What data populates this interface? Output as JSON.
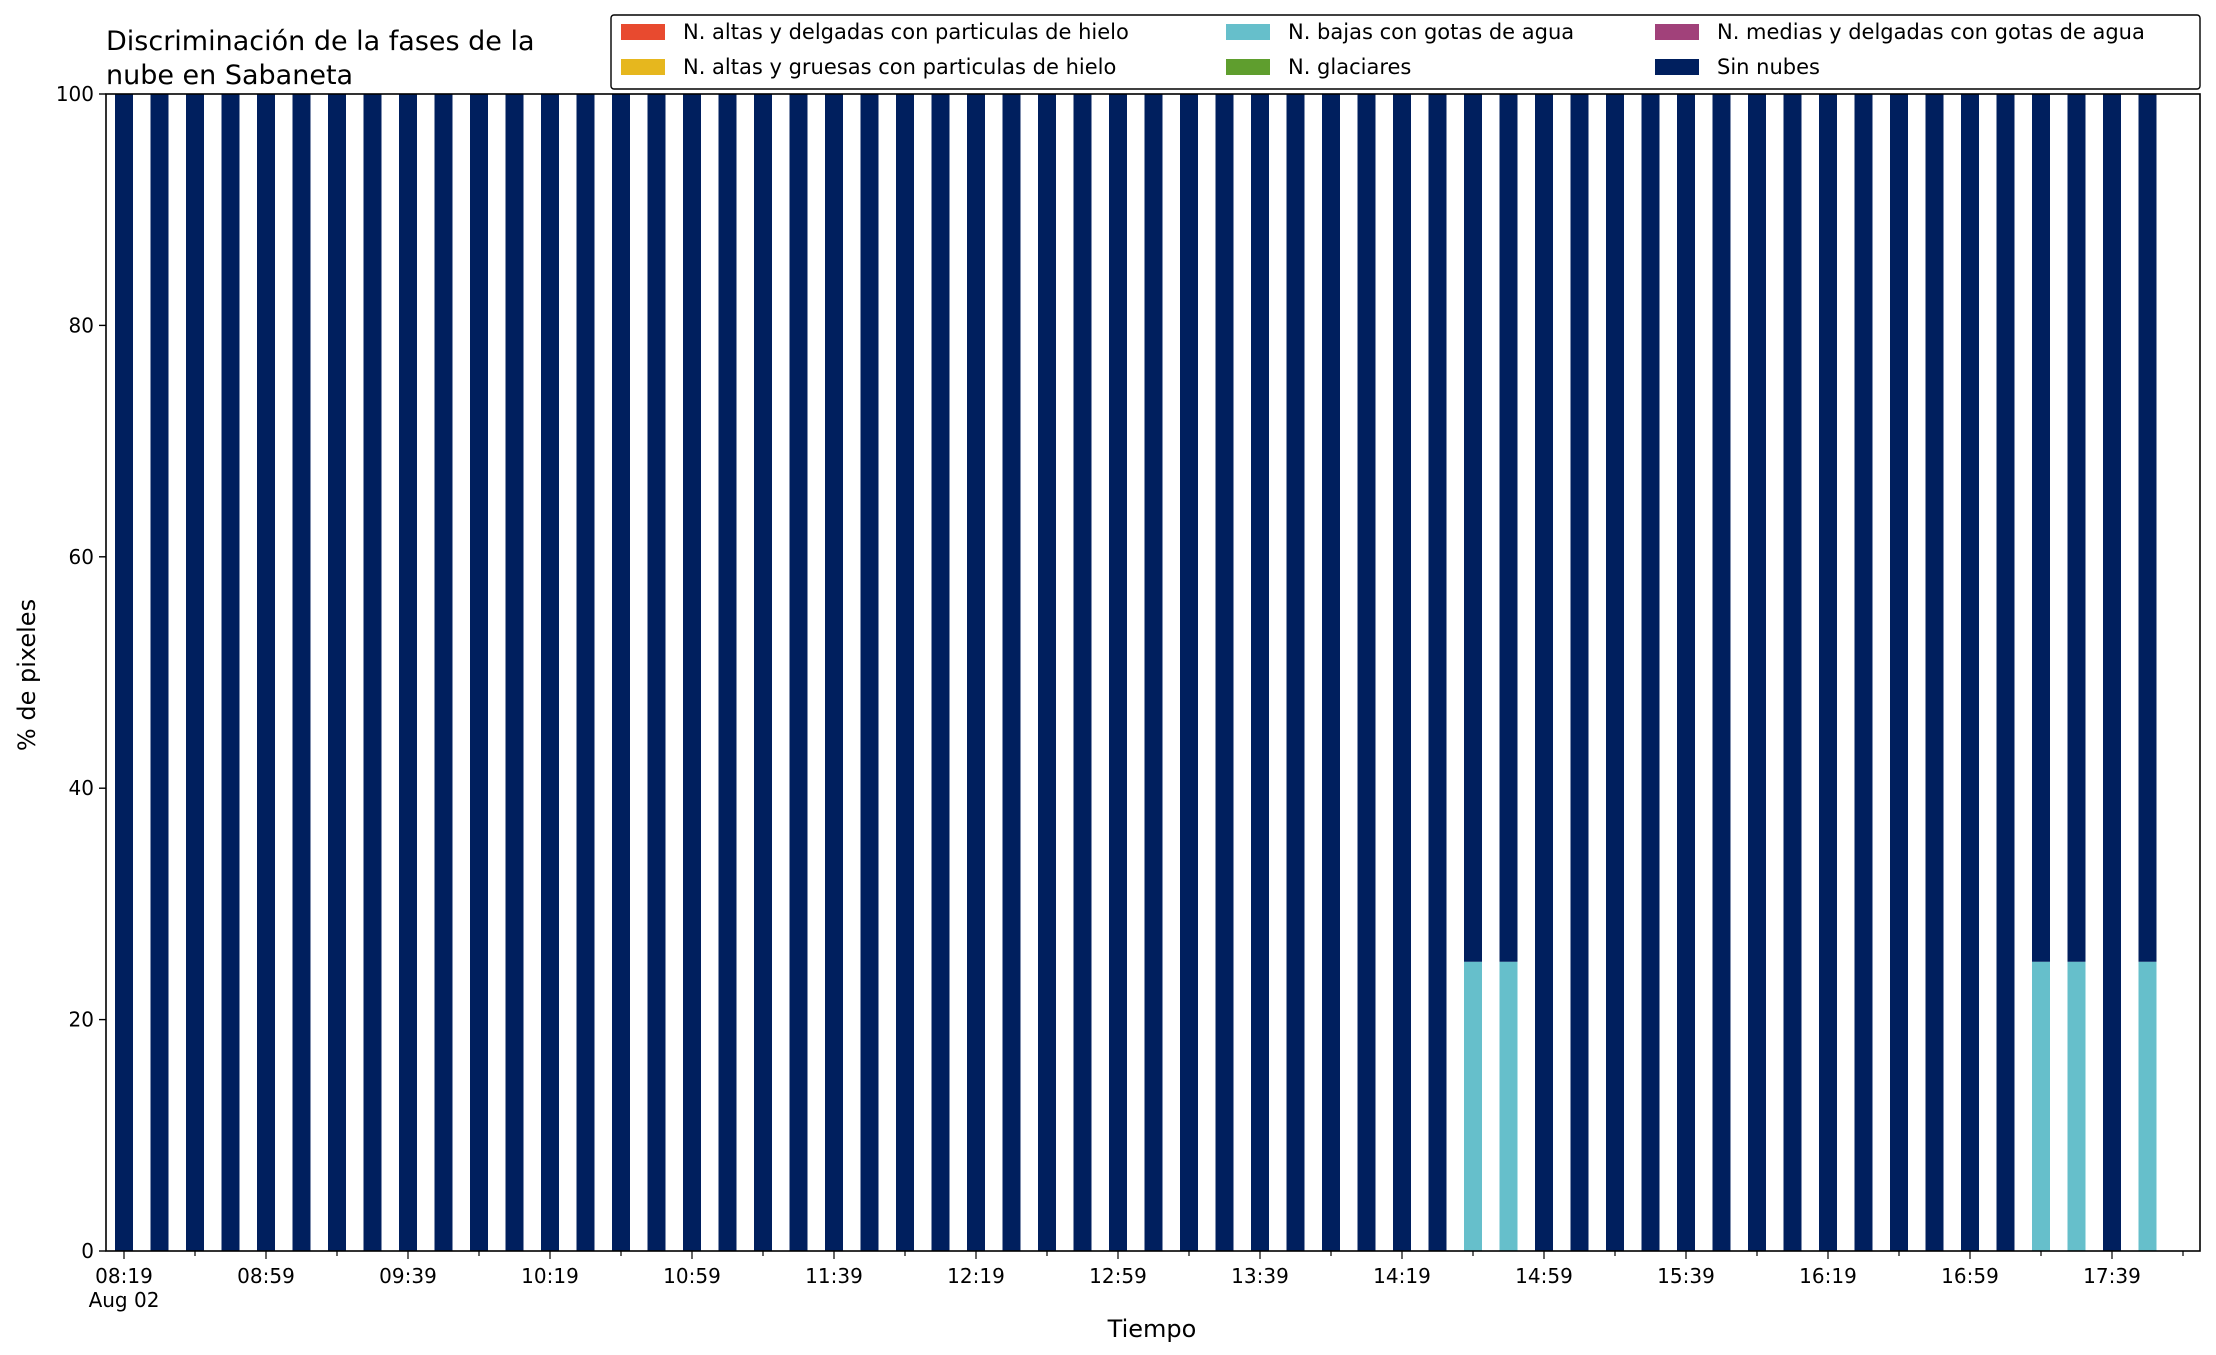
{
  "chart_data": {
    "type": "bar",
    "stacked": true,
    "title": [
      "Discriminación de la fases de la",
      "nube en Sabaneta"
    ],
    "xlabel": "Tiempo",
    "ylabel": "% de pixeles",
    "ylim": [
      0,
      100
    ],
    "yticks": [
      0,
      20,
      40,
      60,
      80,
      100
    ],
    "grid": false,
    "legend_position": "top-right",
    "legend_columns": 3,
    "x_start": "2024-08-02 08:19",
    "x_tick_labels": [
      "08:19",
      "08:59",
      "09:39",
      "10:19",
      "10:59",
      "11:39",
      "12:19",
      "12:59",
      "13:39",
      "14:19",
      "14:59",
      "15:39",
      "16:19",
      "16:59",
      "17:39"
    ],
    "x_tick_sublabel": "Aug 02",
    "categories": [
      "08:19",
      "08:29",
      "08:39",
      "08:49",
      "08:59",
      "09:09",
      "09:19",
      "09:29",
      "09:39",
      "09:49",
      "09:59",
      "10:09",
      "10:19",
      "10:29",
      "10:39",
      "10:49",
      "10:59",
      "11:09",
      "11:19",
      "11:29",
      "11:39",
      "11:49",
      "11:59",
      "12:09",
      "12:19",
      "12:29",
      "12:39",
      "12:49",
      "12:59",
      "13:09",
      "13:19",
      "13:29",
      "13:39",
      "13:49",
      "13:59",
      "14:09",
      "14:19",
      "14:29",
      "14:39",
      "14:49",
      "14:59",
      "15:09",
      "15:19",
      "15:29",
      "15:39",
      "15:49",
      "15:59",
      "16:09",
      "16:19",
      "16:29",
      "16:39",
      "16:49",
      "16:59",
      "17:09",
      "17:19",
      "17:29",
      "17:39",
      "17:49"
    ],
    "series": [
      {
        "name": "N. altas y delgadas con particulas de hielo",
        "color": "#e84a2f",
        "values": [
          0,
          0,
          0,
          0,
          0,
          0,
          0,
          0,
          0,
          0,
          0,
          0,
          0,
          0,
          0,
          0,
          0,
          0,
          0,
          0,
          0,
          0,
          0,
          0,
          0,
          0,
          0,
          0,
          0,
          0,
          0,
          0,
          0,
          0,
          0,
          0,
          0,
          0,
          0,
          0,
          0,
          0,
          0,
          0,
          0,
          0,
          0,
          0,
          0,
          0,
          0,
          0,
          0,
          0,
          0,
          0,
          0,
          0
        ]
      },
      {
        "name": "N. altas y gruesas con particulas de hielo",
        "color": "#e6b71e",
        "values": [
          0,
          0,
          0,
          0,
          0,
          0,
          0,
          0,
          0,
          0,
          0,
          0,
          0,
          0,
          0,
          0,
          0,
          0,
          0,
          0,
          0,
          0,
          0,
          0,
          0,
          0,
          0,
          0,
          0,
          0,
          0,
          0,
          0,
          0,
          0,
          0,
          0,
          0,
          0,
          0,
          0,
          0,
          0,
          0,
          0,
          0,
          0,
          0,
          0,
          0,
          0,
          0,
          0,
          0,
          0,
          0,
          0,
          0
        ]
      },
      {
        "name": "N. bajas con gotas de agua",
        "color": "#66bfcb",
        "values": [
          0,
          0,
          0,
          0,
          0,
          0,
          0,
          0,
          0,
          0,
          0,
          0,
          0,
          0,
          0,
          0,
          0,
          0,
          0,
          0,
          0,
          0,
          0,
          0,
          0,
          0,
          0,
          0,
          0,
          0,
          0,
          0,
          0,
          0,
          0,
          0,
          0,
          0,
          25,
          25,
          0,
          0,
          0,
          0,
          0,
          0,
          0,
          0,
          0,
          0,
          0,
          0,
          0,
          0,
          25,
          25,
          0,
          25
        ]
      },
      {
        "name": "N. glaciares",
        "color": "#5f9e2e",
        "values": [
          0,
          0,
          0,
          0,
          0,
          0,
          0,
          0,
          0,
          0,
          0,
          0,
          0,
          0,
          0,
          0,
          0,
          0,
          0,
          0,
          0,
          0,
          0,
          0,
          0,
          0,
          0,
          0,
          0,
          0,
          0,
          0,
          0,
          0,
          0,
          0,
          0,
          0,
          0,
          0,
          0,
          0,
          0,
          0,
          0,
          0,
          0,
          0,
          0,
          0,
          0,
          0,
          0,
          0,
          0,
          0,
          0,
          0
        ]
      },
      {
        "name": "N. medias y delgadas con gotas de agua",
        "color": "#a1417a",
        "values": [
          0,
          0,
          0,
          0,
          0,
          0,
          0,
          0,
          0,
          0,
          0,
          0,
          0,
          0,
          0,
          0,
          0,
          0,
          0,
          0,
          0,
          0,
          0,
          0,
          0,
          0,
          0,
          0,
          0,
          0,
          0,
          0,
          0,
          0,
          0,
          0,
          0,
          0,
          0,
          0,
          0,
          0,
          0,
          0,
          0,
          0,
          0,
          0,
          0,
          0,
          0,
          0,
          0,
          0,
          0,
          0,
          0,
          0
        ]
      },
      {
        "name": "Sin nubes",
        "color": "#001f5e",
        "values": [
          100,
          100,
          100,
          100,
          100,
          100,
          100,
          100,
          100,
          100,
          100,
          100,
          100,
          100,
          100,
          100,
          100,
          100,
          100,
          100,
          100,
          100,
          100,
          100,
          100,
          100,
          100,
          100,
          100,
          100,
          100,
          100,
          100,
          100,
          100,
          100,
          100,
          100,
          75,
          75,
          100,
          100,
          100,
          100,
          100,
          100,
          100,
          100,
          100,
          100,
          100,
          100,
          100,
          100,
          75,
          75,
          100,
          75
        ]
      }
    ]
  }
}
